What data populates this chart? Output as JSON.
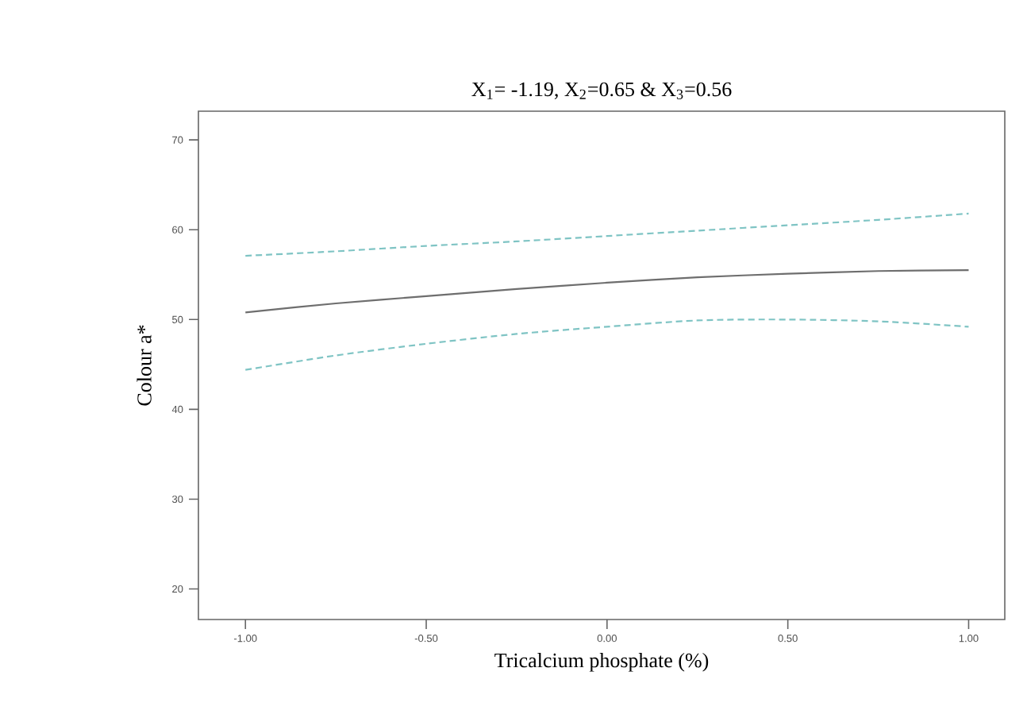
{
  "chart_data": {
    "type": "line",
    "title": "X$_{1}$= -1.19, X$_{2}$=0.65 & X$_{3}$=0.56",
    "xlabel": "Tricalcium phosphate (%)",
    "ylabel": "Colour a*",
    "x": [
      -1,
      -0.75,
      -0.5,
      -0.25,
      0,
      0.25,
      0.5,
      0.75,
      1
    ],
    "series": [
      {
        "color": "#6e6e6e",
        "line_style": "solid",
        "values": [
          50.8,
          51.8,
          52.6,
          53.4,
          54.1,
          54.7,
          55.1,
          55.4,
          55.5
        ]
      },
      {
        "color": "#7fc4c4",
        "line_style": "dashed",
        "values": [
          57.1,
          57.6,
          58.2,
          58.7,
          59.3,
          59.9,
          60.5,
          61.1,
          61.8
        ]
      },
      {
        "color": "#7fc4c4",
        "line_style": "dashed",
        "values": [
          44.4,
          46.0,
          47.3,
          48.4,
          49.2,
          49.9,
          50.0,
          49.8,
          49.2
        ]
      }
    ],
    "xlim": [
      -1.13,
      1.1
    ],
    "ylim": [
      16.6,
      73.2
    ],
    "xticks": [
      {
        "value": -1,
        "label": "-1.00"
      },
      {
        "value": -0.5,
        "label": "-0.50"
      },
      {
        "value": 0,
        "label": "0.00"
      },
      {
        "value": 0.5,
        "label": "0.50"
      },
      {
        "value": 1,
        "label": "1.00"
      }
    ],
    "yticks": [
      20,
      30,
      40,
      50,
      60,
      70
    ],
    "grid": false,
    "marker": "none"
  }
}
